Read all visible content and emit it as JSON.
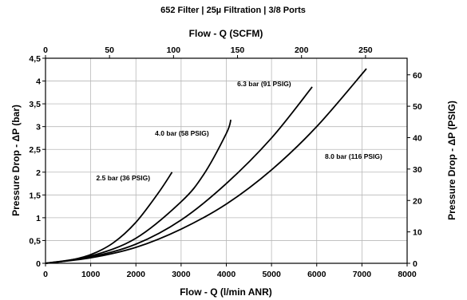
{
  "chart_data": {
    "type": "line",
    "title": "652 Filter | 25µ Filtration | 3/8 Ports",
    "xlabel": "Flow - Q (l/min ANR)",
    "x2label": "Flow - Q (SCFM)",
    "ylabel": "Pressure Drop - ΔP (bar)",
    "y2label": "Pressure Drop - ΔP (PSIG)",
    "xlim": [
      0,
      8000
    ],
    "ylim": [
      0,
      4.5
    ],
    "x2lim": [
      0,
      282.5
    ],
    "y2lim": [
      0,
      65.27
    ],
    "grid": true,
    "x_ticks": [
      "0",
      "1000",
      "2000",
      "3000",
      "4000",
      "5000",
      "6000",
      "7000",
      "8000"
    ],
    "y_ticks": [
      "0",
      "0,5",
      "1",
      "1,5",
      "2",
      "2,5",
      "3",
      "3,5",
      "4",
      "4,5"
    ],
    "x2_ticks": [
      "0",
      "50",
      "100",
      "150",
      "200",
      "250"
    ],
    "y2_ticks": [
      "0",
      "10",
      "20",
      "30",
      "40",
      "50",
      "60"
    ],
    "series": [
      {
        "name": "2.5 bar (36 PSIG)",
        "x": [
          0,
          500,
          1000,
          1500,
          2000,
          2500,
          2800
        ],
        "y": [
          0,
          0.06,
          0.19,
          0.45,
          0.9,
          1.55,
          2.0
        ]
      },
      {
        "name": "4.0 bar (58 PSIG)",
        "x": [
          0,
          1000,
          2000,
          3000,
          3500,
          4000,
          4100
        ],
        "y": [
          0,
          0.16,
          0.55,
          1.35,
          1.95,
          2.85,
          3.15
        ]
      },
      {
        "name": "6.3 bar (91 PSIG)",
        "x": [
          0,
          1000,
          2000,
          3000,
          4000,
          5000,
          5900
        ],
        "y": [
          0,
          0.14,
          0.42,
          0.95,
          1.75,
          2.75,
          3.87
        ]
      },
      {
        "name": "8.0 bar (116 PSIG)",
        "x": [
          0,
          1000,
          2000,
          3000,
          4000,
          5000,
          6000,
          7100
        ],
        "y": [
          0,
          0.12,
          0.35,
          0.75,
          1.3,
          2.05,
          3.0,
          4.27
        ]
      }
    ]
  }
}
